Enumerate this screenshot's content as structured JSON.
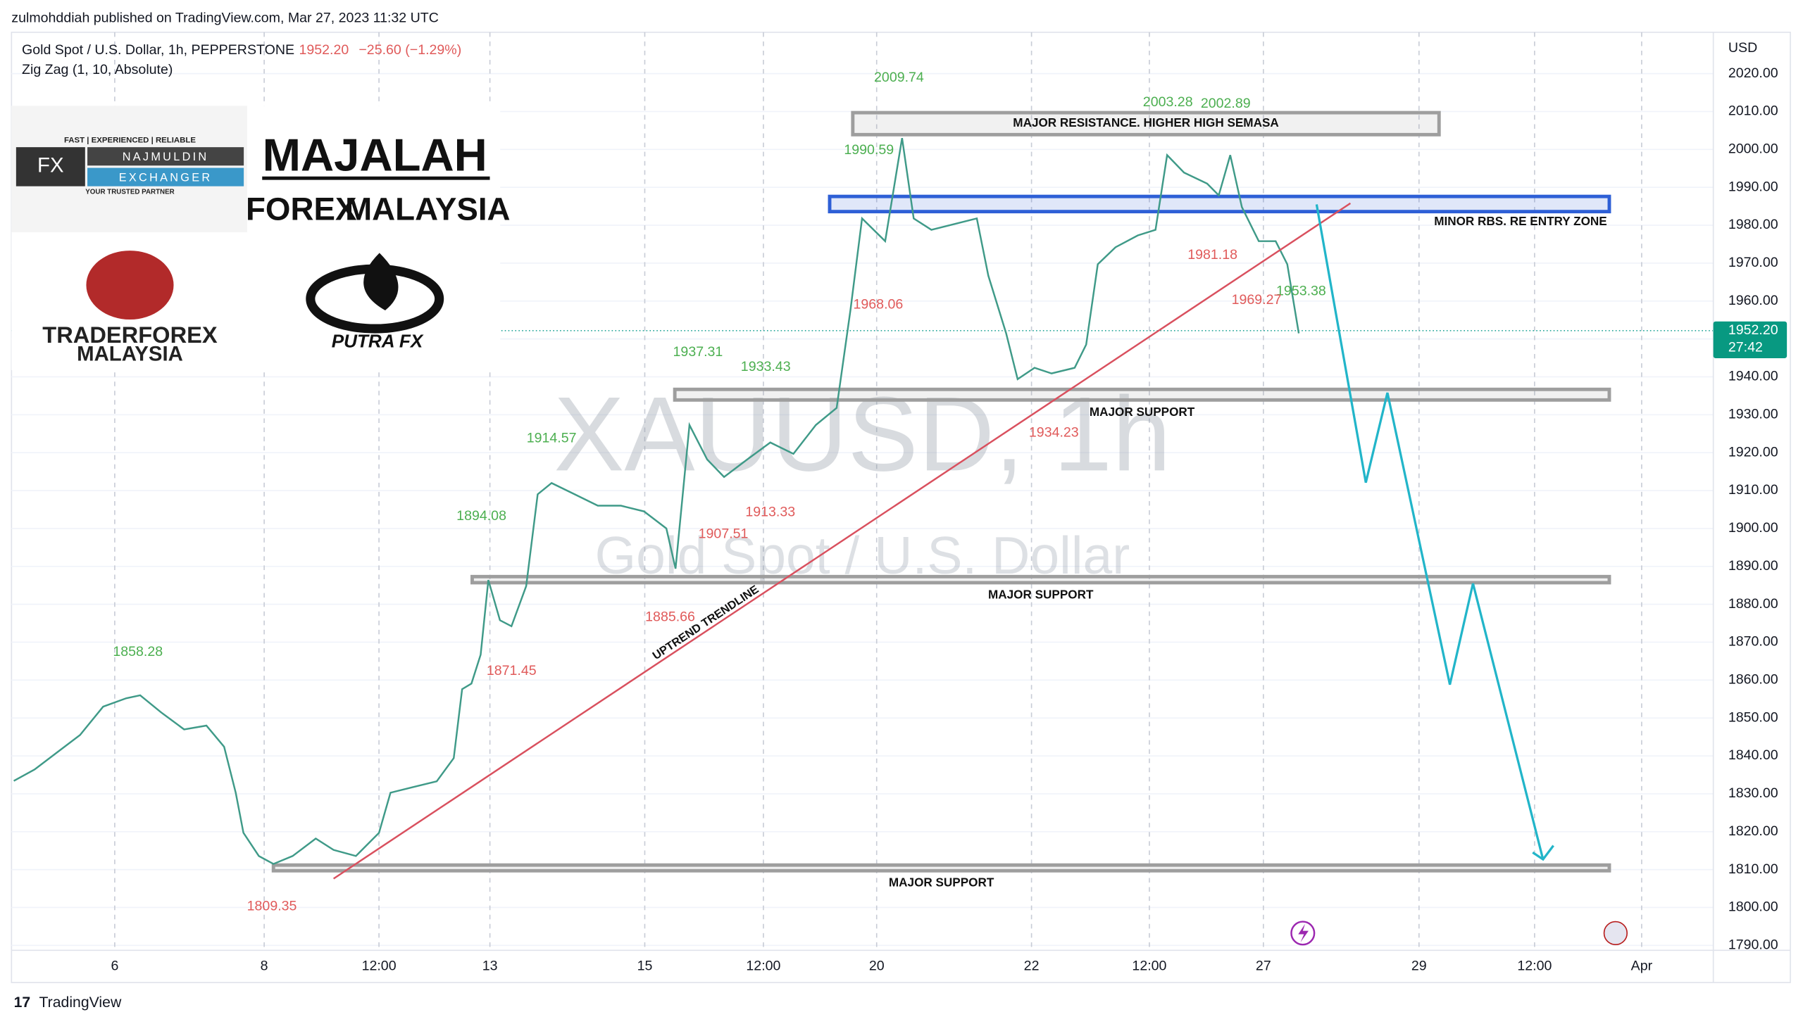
{
  "header": {
    "publisher": "zulmohddiah published on TradingView.com, Mar 27, 2023 11:32 UTC",
    "symbol": "Gold Spot / U.S. Dollar, 1h, PEPPERSTONE",
    "change": "−25.60 (−1.29%)",
    "indicator": "Zig Zag (1, 10, Absolute)"
  },
  "logos": {
    "najmuldin": {
      "tagline": "FAST | EXPERIENCED | RELIABLE",
      "mark": "FX",
      "name": "NAJMULDIN",
      "kind": "EXCHANGER",
      "slogan": "YOUR TRUSTED PARTNER"
    },
    "majalah": {
      "top": "MAJALAH",
      "left": "FOREX",
      "right": "MALAYSIA"
    },
    "traderforex": {
      "top": "TRADERFOREX",
      "bottom": "MALAYSIA"
    },
    "putra": {
      "name": "PUTRA FX"
    }
  },
  "footer": {
    "brand": "TradingView"
  },
  "chart_data": {
    "type": "line",
    "watermark": "XAUUSD, 1h",
    "watermark_subtitle": "Gold Spot / U.S. Dollar",
    "currency": "USD",
    "color": "#3f9a88",
    "x": [
      -1.31,
      -1.04,
      -0.75,
      -0.45,
      -0.15,
      0.15,
      0.33,
      0.6,
      0.9,
      1.19,
      1.42,
      1.57,
      1.67,
      1.87,
      2.06,
      2.31,
      2.61,
      2.84,
      3.13,
      3.43,
      3.58,
      3.88,
      4.18,
      4.4,
      4.51,
      4.63,
      4.75,
      4.85,
      5,
      5.15,
      5.34,
      5.49,
      5.67,
      5.97,
      6.27,
      6.57,
      6.87,
      7.16,
      7.28,
      7.46,
      7.69,
      7.91,
      8.21,
      8.51,
      8.81,
      9.1,
      9.37,
      9.55,
      9.7,
      10,
      10.22,
      10.37,
      10.6,
      10.9,
      11.19,
      11.34,
      11.57,
      11.72,
      11.94,
      12.16,
      12.46,
      12.61,
      12.76,
      12.99,
      13.28,
      13.51,
      13.66,
      13.88,
      14.18,
      14.33,
      14.48,
      14.63,
      14.85,
      15.07,
      15.22,
      15.37
    ],
    "values": [
      1833.4,
      1836.4,
      1840.9,
      1845.5,
      1853,
      1855.2,
      1856,
      1851.5,
      1847,
      1848,
      1842.4,
      1830.3,
      1819.7,
      1813.6,
      1811.5,
      1813.6,
      1818.2,
      1815.2,
      1813.6,
      1819.7,
      1830.3,
      1831.8,
      1833.3,
      1839.4,
      1857.6,
      1859.1,
      1866.7,
      1886.4,
      1875.8,
      1874.2,
      1884.8,
      1909,
      1912,
      1909,
      1906,
      1906,
      1904.5,
      1900,
      1889.4,
      1927.3,
      1918.2,
      1913.6,
      1918.2,
      1922.7,
      1919.7,
      1927.3,
      1931.8,
      1957.6,
      1981.8,
      1975.8,
      2003,
      1981.8,
      1978.8,
      1980.3,
      1981.8,
      1966.7,
      1951.5,
      1939.4,
      1942.4,
      1940.9,
      1942.4,
      1948.5,
      1969.7,
      1974.2,
      1977.3,
      1978.8,
      1998.5,
      1993.9,
      1991,
      1987.9,
      1998.5,
      1984.8,
      1975.8,
      1975.8,
      1969.7,
      1951.5
    ],
    "last_price": {
      "value": 1952.2,
      "label": "1952.20"
    },
    "countdown": "27:42",
    "xlim": [
      -1.34,
      20.75
    ],
    "ylim": [
      1789,
      2030
    ],
    "xticks": [
      {
        "value": 0,
        "label": "6"
      },
      {
        "value": 1.94,
        "label": "8"
      },
      {
        "value": 3.43,
        "label": "12:00"
      },
      {
        "value": 4.87,
        "label": "13"
      },
      {
        "value": 6.88,
        "label": "15"
      },
      {
        "value": 8.42,
        "label": "12:00"
      },
      {
        "value": 9.89,
        "label": "20"
      },
      {
        "value": 11.9,
        "label": "22"
      },
      {
        "value": 13.43,
        "label": "12:00"
      },
      {
        "value": 14.91,
        "label": "27"
      },
      {
        "value": 16.93,
        "label": "29"
      },
      {
        "value": 18.43,
        "label": "12:00"
      },
      {
        "value": 19.82,
        "label": "Apr"
      }
    ],
    "yticks": [
      {
        "value": 1790,
        "label": "1790.00"
      },
      {
        "value": 1800,
        "label": "1800.00"
      },
      {
        "value": 1810,
        "label": "1810.00"
      },
      {
        "value": 1820,
        "label": "1820.00"
      },
      {
        "value": 1830,
        "label": "1830.00"
      },
      {
        "value": 1840,
        "label": "1840.00"
      },
      {
        "value": 1850,
        "label": "1850.00"
      },
      {
        "value": 1860,
        "label": "1860.00"
      },
      {
        "value": 1870,
        "label": "1870.00"
      },
      {
        "value": 1880,
        "label": "1880.00"
      },
      {
        "value": 1890,
        "label": "1890.00"
      },
      {
        "value": 1900,
        "label": "1900.00"
      },
      {
        "value": 1910,
        "label": "1910.00"
      },
      {
        "value": 1920,
        "label": "1920.00"
      },
      {
        "value": 1930,
        "label": "1930.00"
      },
      {
        "value": 1940,
        "label": "1940.00"
      },
      {
        "value": 1950,
        "label": "1950.00"
      },
      {
        "value": 1960,
        "label": "1960.00"
      },
      {
        "value": 1970,
        "label": "1970.00"
      },
      {
        "value": 1980,
        "label": "1980.00"
      },
      {
        "value": 1990,
        "label": "1990.00"
      },
      {
        "value": 2000,
        "label": "2000.00"
      },
      {
        "value": 2010,
        "label": "2010.00"
      },
      {
        "value": 2020,
        "label": "2020.00"
      }
    ],
    "grid": true,
    "zigzag_highs": {
      "color": "#4caf50",
      "x": [
        0.3,
        4.76,
        5.67,
        7.57,
        8.45,
        9.79,
        10.18,
        13.67,
        14.42,
        15.4
      ],
      "values": [
        1858.28,
        1894.08,
        1914.57,
        1937.31,
        1933.43,
        1990.59,
        2009.74,
        2003.28,
        2002.89,
        1953.38
      ]
    },
    "zigzag_lows": {
      "color": "#e05a5a",
      "x": [
        2.04,
        5.15,
        7.21,
        7.9,
        8.51,
        9.91,
        12.19,
        14.25,
        14.82
      ],
      "values": [
        1809.35,
        1871.45,
        1885.66,
        1907.51,
        1913.33,
        1968.06,
        1934.23,
        1981.18,
        1969.27
      ]
    },
    "zones": [
      {
        "label": "MAJOR RESISTANCE. HIGHER HIGH SEMASA",
        "top": 2009.7,
        "bottom": 2003.9,
        "x_start": 9.58,
        "x_end": 17.19,
        "color": "#9e9e9e",
        "label_align": "inside"
      },
      {
        "label": "MINOR RBS. RE ENTRY ZONE",
        "top": 1987.6,
        "bottom": 1983.6,
        "x_start": 9.28,
        "x_end": 19.4,
        "color": "#2e5fd6",
        "label_align": "below-right"
      },
      {
        "label": "MAJOR SUPPORT",
        "top": 1936.7,
        "bottom": 1933.9,
        "x_start": 7.27,
        "x_end": 19.4,
        "color": "#9e9e9e",
        "label_align": "below"
      },
      {
        "label": "MAJOR SUPPORT",
        "top": 1887.3,
        "bottom": 1885.7,
        "x_start": 4.64,
        "x_end": 19.4,
        "color": "#9e9e9e",
        "label_align": "below"
      },
      {
        "label": "MAJOR SUPPORT",
        "top": 1811.2,
        "bottom": 1809.7,
        "x_start": 2.06,
        "x_end": 19.4,
        "color": "#9e9e9e",
        "label_align": "below"
      }
    ],
    "trendline": {
      "label": "UPTREND TRENDLINE",
      "x": [
        2.84,
        16.04
      ],
      "values": [
        1807.6,
        1985.8
      ],
      "color": "#d9505e"
    },
    "projection": {
      "x": [
        15.6,
        16.24,
        16.52,
        17.33,
        17.63,
        18.54
      ],
      "values": [
        1985.5,
        1912.1,
        1935.8,
        1858.8,
        1885.5,
        1812.7
      ],
      "color": "#22b5c9"
    }
  }
}
